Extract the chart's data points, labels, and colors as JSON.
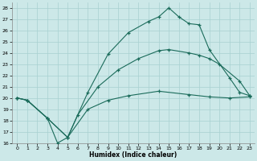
{
  "xlabel": "Humidex (Indice chaleur)",
  "bg_color": "#cce8e8",
  "line_color": "#1a6b5a",
  "grid_color": "#a8d0d0",
  "xlim": [
    -0.5,
    23.5
  ],
  "ylim": [
    16,
    28.5
  ],
  "xticks": [
    0,
    1,
    2,
    3,
    4,
    5,
    6,
    7,
    8,
    9,
    10,
    11,
    12,
    13,
    14,
    15,
    16,
    17,
    18,
    19,
    20,
    21,
    22,
    23
  ],
  "yticks": [
    16,
    17,
    18,
    19,
    20,
    21,
    22,
    23,
    24,
    25,
    26,
    27,
    28
  ],
  "line1_x": [
    0,
    1,
    3,
    5,
    7,
    9,
    11,
    13,
    14,
    15,
    16,
    17,
    18,
    19,
    21,
    22,
    23
  ],
  "line1_y": [
    20.0,
    19.8,
    18.2,
    16.5,
    20.5,
    23.9,
    25.8,
    26.8,
    27.2,
    28.0,
    27.2,
    26.6,
    26.5,
    24.3,
    21.8,
    20.5,
    20.2
  ],
  "line2_x": [
    0,
    1,
    3,
    5,
    6,
    8,
    10,
    12,
    14,
    15,
    17,
    18,
    19,
    20,
    22,
    23
  ],
  "line2_y": [
    20.0,
    19.8,
    18.2,
    16.5,
    18.5,
    21.0,
    22.5,
    23.5,
    24.2,
    24.3,
    24.0,
    23.8,
    23.5,
    23.0,
    21.5,
    20.2
  ],
  "line3_x": [
    0,
    1,
    3,
    4,
    5,
    7,
    9,
    11,
    14,
    17,
    19,
    21,
    23
  ],
  "line3_y": [
    20.0,
    19.8,
    18.2,
    16.0,
    16.5,
    19.0,
    19.8,
    20.2,
    20.6,
    20.3,
    20.1,
    20.0,
    20.1
  ]
}
